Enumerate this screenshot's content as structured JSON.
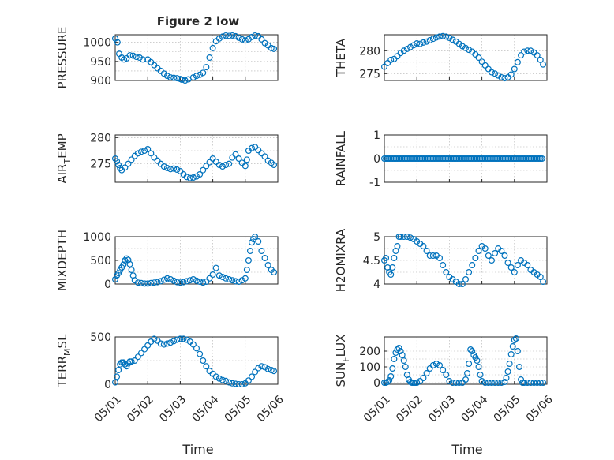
{
  "figure": {
    "title": "Figure 2 low"
  },
  "colors": {
    "marker": "#0072BD",
    "axis": "#262626",
    "grid": "#b0b0b0"
  },
  "chart_data": [
    {
      "type": "scatter",
      "title": "Figure 2 low",
      "ylabel": "PRESSURE",
      "xlabel": "",
      "xlim": [
        0,
        5
      ],
      "ylim": [
        900,
        1020
      ],
      "yticks": [
        900,
        950,
        1000
      ],
      "xtick_labels": [],
      "grid": true,
      "marker": "circle",
      "series": [
        {
          "x": [
            0.0,
            0.07,
            0.12,
            0.2,
            0.27,
            0.35,
            0.45,
            0.55,
            0.65,
            0.75,
            0.85,
            1.0,
            1.1,
            1.2,
            1.3,
            1.4,
            1.5,
            1.6,
            1.7,
            1.8,
            1.9,
            2.0,
            2.05,
            2.15,
            2.25,
            2.4,
            2.5,
            2.6,
            2.7,
            2.8,
            2.9,
            3.0,
            3.1,
            3.2,
            3.3,
            3.4,
            3.5,
            3.6,
            3.7,
            3.8,
            3.9,
            4.0,
            4.1,
            4.2,
            4.3,
            4.4,
            4.5,
            4.6,
            4.7,
            4.8,
            4.88
          ],
          "y": [
            1010,
            1000,
            970,
            960,
            955,
            958,
            966,
            965,
            962,
            960,
            955,
            955,
            948,
            940,
            932,
            925,
            918,
            912,
            908,
            907,
            906,
            904,
            902,
            900,
            903,
            908,
            912,
            915,
            920,
            935,
            960,
            985,
            1003,
            1010,
            1015,
            1018,
            1017,
            1018,
            1016,
            1012,
            1008,
            1005,
            1008,
            1014,
            1018,
            1016,
            1008,
            998,
            992,
            985,
            983
          ]
        }
      ]
    },
    {
      "type": "scatter",
      "title": "",
      "ylabel": "THETA",
      "xlabel": "",
      "xlim": [
        0,
        5
      ],
      "ylim": [
        273.5,
        283.5
      ],
      "yticks": [
        275,
        280
      ],
      "xtick_labels": [],
      "grid": true,
      "marker": "circle",
      "series": [
        {
          "x": [
            0.0,
            0.1,
            0.2,
            0.3,
            0.4,
            0.5,
            0.6,
            0.7,
            0.8,
            0.9,
            1.0,
            1.1,
            1.2,
            1.3,
            1.4,
            1.5,
            1.6,
            1.7,
            1.8,
            1.9,
            2.0,
            2.1,
            2.2,
            2.3,
            2.4,
            2.5,
            2.6,
            2.7,
            2.8,
            2.9,
            3.0,
            3.1,
            3.2,
            3.3,
            3.4,
            3.5,
            3.6,
            3.7,
            3.8,
            3.9,
            4.0,
            4.1,
            4.2,
            4.3,
            4.4,
            4.5,
            4.6,
            4.7,
            4.8,
            4.88
          ],
          "y": [
            276.5,
            277.3,
            278.0,
            278.2,
            278.8,
            279.5,
            280.0,
            280.4,
            280.8,
            281.2,
            281.6,
            281.5,
            281.8,
            282.0,
            282.3,
            282.6,
            282.9,
            283.1,
            283.2,
            283.1,
            282.8,
            282.4,
            282.0,
            281.5,
            281.0,
            280.6,
            280.2,
            279.8,
            279.2,
            278.5,
            277.6,
            276.8,
            276.0,
            275.3,
            275.0,
            274.6,
            274.2,
            274.0,
            274.2,
            274.8,
            276.0,
            277.5,
            279.0,
            279.8,
            280.0,
            280.0,
            279.6,
            279.0,
            278.0,
            277.0
          ]
        }
      ]
    },
    {
      "type": "scatter",
      "title": "",
      "ylabel": "AIR_TEMP",
      "ylabel_main": "AIR",
      "ylabel_sub": "T",
      "ylabel_rest": "EMP",
      "xlabel": "",
      "xlim": [
        0,
        5
      ],
      "ylim": [
        271.5,
        280.5
      ],
      "yticks": [
        275,
        280
      ],
      "xtick_labels": [],
      "grid": true,
      "marker": "circle",
      "series": [
        {
          "x": [
            0.0,
            0.05,
            0.1,
            0.15,
            0.2,
            0.3,
            0.4,
            0.5,
            0.6,
            0.7,
            0.8,
            0.9,
            1.0,
            1.1,
            1.2,
            1.3,
            1.4,
            1.5,
            1.6,
            1.7,
            1.8,
            1.9,
            2.0,
            2.1,
            2.2,
            2.3,
            2.4,
            2.5,
            2.6,
            2.7,
            2.8,
            2.9,
            3.0,
            3.1,
            3.2,
            3.3,
            3.4,
            3.5,
            3.6,
            3.7,
            3.8,
            3.9,
            4.0,
            4.05,
            4.1,
            4.2,
            4.3,
            4.4,
            4.5,
            4.6,
            4.7,
            4.8,
            4.88
          ],
          "y": [
            276.0,
            275.5,
            274.8,
            274.2,
            273.8,
            274.3,
            275.0,
            275.8,
            276.5,
            277.0,
            277.3,
            277.5,
            277.8,
            277.0,
            276.2,
            275.6,
            275.0,
            274.5,
            274.2,
            274.0,
            274.1,
            273.9,
            273.6,
            273.0,
            272.5,
            272.3,
            272.4,
            272.6,
            273.0,
            273.8,
            274.6,
            275.3,
            276.0,
            275.4,
            274.8,
            274.5,
            274.8,
            275.0,
            276.2,
            276.8,
            276.0,
            275.2,
            274.6,
            275.8,
            277.5,
            278.0,
            278.2,
            277.6,
            277.0,
            276.4,
            275.6,
            275.2,
            274.8
          ]
        }
      ]
    },
    {
      "type": "scatter",
      "title": "",
      "ylabel": "RAINFALL",
      "xlabel": "",
      "xlim": [
        0,
        5
      ],
      "ylim": [
        -1,
        1
      ],
      "yticks": [
        -1,
        0,
        1
      ],
      "xtick_labels": [],
      "grid": true,
      "marker": "circle",
      "constant": 0,
      "series": [
        {
          "x_start": 0,
          "x_end": 4.88,
          "y": 0
        }
      ]
    },
    {
      "type": "scatter",
      "title": "",
      "ylabel": "MIXDEPTH",
      "xlabel": "",
      "xlim": [
        0,
        5
      ],
      "ylim": [
        0,
        1000
      ],
      "yticks": [
        0,
        500,
        1000
      ],
      "xtick_labels": [],
      "grid": true,
      "marker": "circle",
      "series": [
        {
          "x": [
            0.0,
            0.05,
            0.1,
            0.15,
            0.2,
            0.25,
            0.3,
            0.35,
            0.4,
            0.45,
            0.5,
            0.55,
            0.6,
            0.7,
            0.8,
            0.9,
            1.0,
            1.1,
            1.2,
            1.3,
            1.4,
            1.5,
            1.6,
            1.7,
            1.8,
            1.9,
            2.0,
            2.1,
            2.2,
            2.3,
            2.4,
            2.5,
            2.6,
            2.7,
            2.8,
            2.9,
            3.0,
            3.1,
            3.2,
            3.3,
            3.4,
            3.5,
            3.6,
            3.7,
            3.8,
            3.9,
            4.0,
            4.05,
            4.1,
            4.15,
            4.2,
            4.25,
            4.3,
            4.4,
            4.5,
            4.6,
            4.7,
            4.8,
            4.88
          ],
          "y": [
            100,
            180,
            230,
            290,
            350,
            410,
            500,
            540,
            510,
            420,
            300,
            180,
            80,
            30,
            20,
            10,
            10,
            20,
            30,
            40,
            60,
            90,
            120,
            100,
            70,
            40,
            30,
            40,
            60,
            80,
            100,
            70,
            50,
            30,
            50,
            120,
            200,
            340,
            180,
            150,
            120,
            100,
            80,
            60,
            50,
            80,
            120,
            300,
            500,
            700,
            880,
            950,
            1000,
            900,
            700,
            550,
            400,
            300,
            250
          ]
        }
      ]
    },
    {
      "type": "scatter",
      "title": "",
      "ylabel": "H2OMIXRA",
      "xlabel": "",
      "xlim": [
        0,
        5
      ],
      "ylim": [
        4,
        5
      ],
      "yticks": [
        4,
        4.5,
        5
      ],
      "xtick_labels": [],
      "grid": true,
      "marker": "circle",
      "series": [
        {
          "x": [
            0.0,
            0.05,
            0.1,
            0.15,
            0.2,
            0.25,
            0.3,
            0.35,
            0.4,
            0.45,
            0.5,
            0.6,
            0.7,
            0.8,
            0.9,
            1.0,
            1.1,
            1.2,
            1.3,
            1.4,
            1.5,
            1.6,
            1.7,
            1.8,
            1.9,
            2.0,
            2.1,
            2.2,
            2.3,
            2.4,
            2.5,
            2.6,
            2.7,
            2.8,
            2.9,
            3.0,
            3.1,
            3.2,
            3.3,
            3.4,
            3.5,
            3.6,
            3.7,
            3.8,
            3.9,
            4.0,
            4.1,
            4.2,
            4.3,
            4.4,
            4.5,
            4.6,
            4.7,
            4.8,
            4.88
          ],
          "y": [
            4.5,
            4.55,
            4.35,
            4.25,
            4.2,
            4.35,
            4.55,
            4.7,
            4.8,
            5.0,
            5.0,
            5.0,
            5.0,
            4.98,
            4.95,
            4.9,
            4.85,
            4.8,
            4.7,
            4.6,
            4.6,
            4.6,
            4.55,
            4.4,
            4.25,
            4.15,
            4.1,
            4.05,
            4.0,
            4.0,
            4.1,
            4.25,
            4.4,
            4.55,
            4.7,
            4.8,
            4.75,
            4.6,
            4.5,
            4.65,
            4.75,
            4.7,
            4.6,
            4.45,
            4.35,
            4.25,
            4.4,
            4.5,
            4.45,
            4.4,
            4.3,
            4.25,
            4.2,
            4.15,
            4.05
          ]
        }
      ]
    },
    {
      "type": "scatter",
      "title": "",
      "ylabel": "TERR_MSL",
      "ylabel_main": "TERR",
      "ylabel_sub": "M",
      "ylabel_rest": "SL",
      "xlabel": "Time",
      "xlim": [
        0,
        5
      ],
      "ylim": [
        0,
        500
      ],
      "yticks": [
        0,
        500
      ],
      "xtick_labels": [
        "05/01",
        "05/02",
        "05/03",
        "05/04",
        "05/05",
        "05/06"
      ],
      "grid": true,
      "marker": "circle",
      "series": [
        {
          "x": [
            0.0,
            0.05,
            0.1,
            0.15,
            0.2,
            0.25,
            0.3,
            0.35,
            0.4,
            0.45,
            0.5,
            0.6,
            0.7,
            0.8,
            0.9,
            1.0,
            1.1,
            1.2,
            1.3,
            1.4,
            1.5,
            1.6,
            1.7,
            1.8,
            1.9,
            2.0,
            2.1,
            2.2,
            2.3,
            2.4,
            2.5,
            2.6,
            2.7,
            2.8,
            2.9,
            3.0,
            3.1,
            3.2,
            3.3,
            3.4,
            3.5,
            3.6,
            3.7,
            3.8,
            3.9,
            4.0,
            4.1,
            4.2,
            4.3,
            4.4,
            4.5,
            4.6,
            4.7,
            4.8,
            4.88
          ],
          "y": [
            20,
            80,
            150,
            210,
            230,
            230,
            210,
            190,
            220,
            240,
            240,
            250,
            290,
            330,
            370,
            410,
            450,
            480,
            460,
            430,
            420,
            430,
            440,
            455,
            470,
            480,
            480,
            470,
            450,
            420,
            380,
            320,
            250,
            190,
            140,
            110,
            80,
            60,
            45,
            35,
            20,
            10,
            5,
            0,
            0,
            10,
            40,
            80,
            130,
            170,
            190,
            180,
            160,
            150,
            140
          ]
        }
      ]
    },
    {
      "type": "scatter",
      "title": "",
      "ylabel": "SUN_FLUX",
      "ylabel_main": "SUN",
      "ylabel_sub": "F",
      "ylabel_rest": "LUX",
      "xlabel": "Time",
      "xlim": [
        0,
        5
      ],
      "ylim": [
        -10,
        290
      ],
      "yticks": [
        0,
        100,
        200
      ],
      "xtick_labels": [
        "05/01",
        "05/02",
        "05/03",
        "05/04",
        "05/05",
        "05/06"
      ],
      "grid": true,
      "marker": "circle",
      "series": [
        {
          "x": [
            0.0,
            0.05,
            0.1,
            0.15,
            0.2,
            0.25,
            0.3,
            0.35,
            0.4,
            0.45,
            0.5,
            0.55,
            0.6,
            0.65,
            0.7,
            0.75,
            0.8,
            0.85,
            0.9,
            0.95,
            1.0,
            1.1,
            1.2,
            1.3,
            1.4,
            1.5,
            1.6,
            1.7,
            1.8,
            1.9,
            2.0,
            2.1,
            2.2,
            2.3,
            2.4,
            2.5,
            2.55,
            2.6,
            2.65,
            2.7,
            2.75,
            2.8,
            2.85,
            2.9,
            2.95,
            3.0,
            3.1,
            3.2,
            3.3,
            3.4,
            3.5,
            3.6,
            3.7,
            3.75,
            3.8,
            3.85,
            3.9,
            3.95,
            4.0,
            4.05,
            4.1,
            4.15,
            4.2,
            4.25,
            4.3,
            4.4,
            4.5,
            4.6,
            4.7,
            4.8,
            4.88
          ],
          "y": [
            0,
            0,
            5,
            15,
            40,
            90,
            150,
            190,
            210,
            220,
            200,
            175,
            140,
            100,
            50,
            20,
            5,
            0,
            0,
            0,
            0,
            10,
            30,
            60,
            90,
            110,
            120,
            110,
            80,
            50,
            10,
            0,
            0,
            0,
            0,
            20,
            60,
            120,
            210,
            200,
            175,
            160,
            140,
            100,
            50,
            10,
            0,
            0,
            0,
            0,
            0,
            0,
            5,
            30,
            70,
            120,
            180,
            230,
            270,
            280,
            200,
            100,
            20,
            0,
            0,
            0,
            0,
            0,
            0,
            0,
            0
          ]
        }
      ]
    }
  ]
}
